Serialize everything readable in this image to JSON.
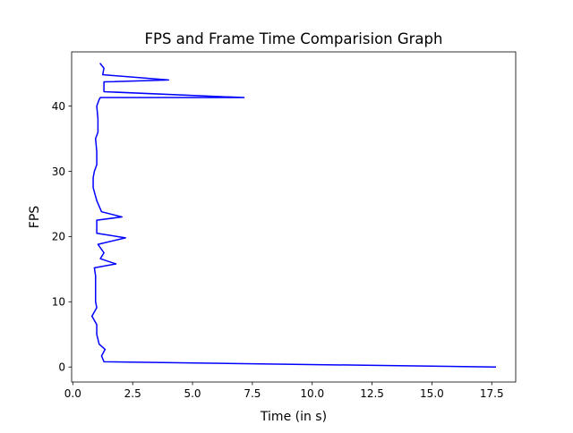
{
  "chart_data": {
    "type": "line",
    "title": "FPS and Frame Time Comparision Graph",
    "xlabel": "Time (in s)",
    "ylabel": "FPS",
    "xlim": [
      -0.05,
      18.5
    ],
    "ylim": [
      -2.3,
      48.3
    ],
    "xticks": [
      0.0,
      2.5,
      5.0,
      7.5,
      10.0,
      12.5,
      15.0,
      17.5
    ],
    "xtick_labels": [
      "0.0",
      "2.5",
      "5.0",
      "7.5",
      "10.0",
      "12.5",
      "15.0",
      "17.5"
    ],
    "yticks": [
      0,
      10,
      20,
      30,
      40
    ],
    "ytick_labels": [
      "0",
      "10",
      "20",
      "30",
      "40"
    ],
    "grid": false,
    "legend": false,
    "series": [
      {
        "color": "#0000ff",
        "x": [
          17.65,
          1.3,
          1.2,
          1.35,
          1.1,
          1.0,
          1.0,
          0.8,
          1.0,
          0.95,
          0.95,
          0.95,
          0.9,
          1.8,
          1.15,
          1.3,
          1.05,
          2.2,
          1.0,
          1.0,
          2.05,
          1.2,
          1.0,
          0.85,
          0.85,
          0.9,
          1.0,
          1.0,
          0.95,
          1.05,
          1.05,
          1.0,
          1.1,
          1.15,
          7.15,
          1.3,
          1.3,
          4.0,
          1.25,
          1.3,
          1.15
        ],
        "y": [
          0.0,
          0.8,
          1.7,
          2.7,
          3.5,
          5.0,
          6.5,
          7.8,
          9.1,
          10.0,
          12.5,
          14.0,
          15.2,
          15.8,
          16.6,
          17.5,
          18.8,
          19.8,
          20.5,
          22.5,
          23.0,
          23.8,
          25.5,
          27.5,
          29.0,
          30.0,
          31.0,
          33.0,
          35.0,
          36.0,
          38.0,
          40.0,
          41.0,
          41.3,
          41.3,
          42.2,
          43.7,
          44.0,
          44.8,
          45.8,
          46.5
        ]
      }
    ]
  }
}
